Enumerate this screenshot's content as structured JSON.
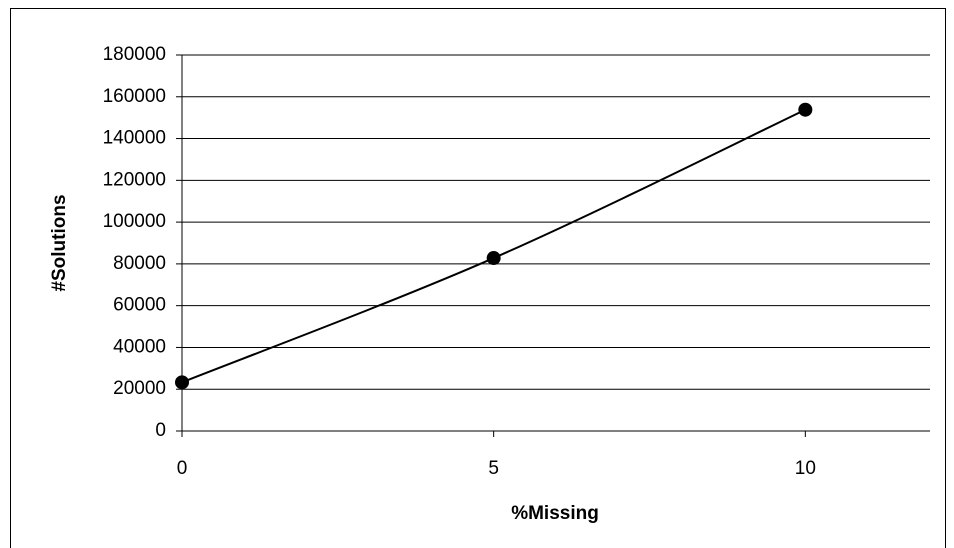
{
  "chart_data": {
    "type": "line",
    "x_label": "%Missing",
    "y_label": "#Solutions",
    "x": [
      0,
      5,
      10
    ],
    "values": [
      23300,
      82800,
      153800
    ],
    "color": "#000000",
    "marker": "circle",
    "xlim": [
      0,
      12
    ],
    "xticks": [
      0,
      5,
      10
    ],
    "ylim": [
      0,
      180000
    ],
    "yticks": [
      0,
      20000,
      40000,
      60000,
      80000,
      100000,
      120000,
      140000,
      160000,
      180000
    ],
    "grid": true
  }
}
